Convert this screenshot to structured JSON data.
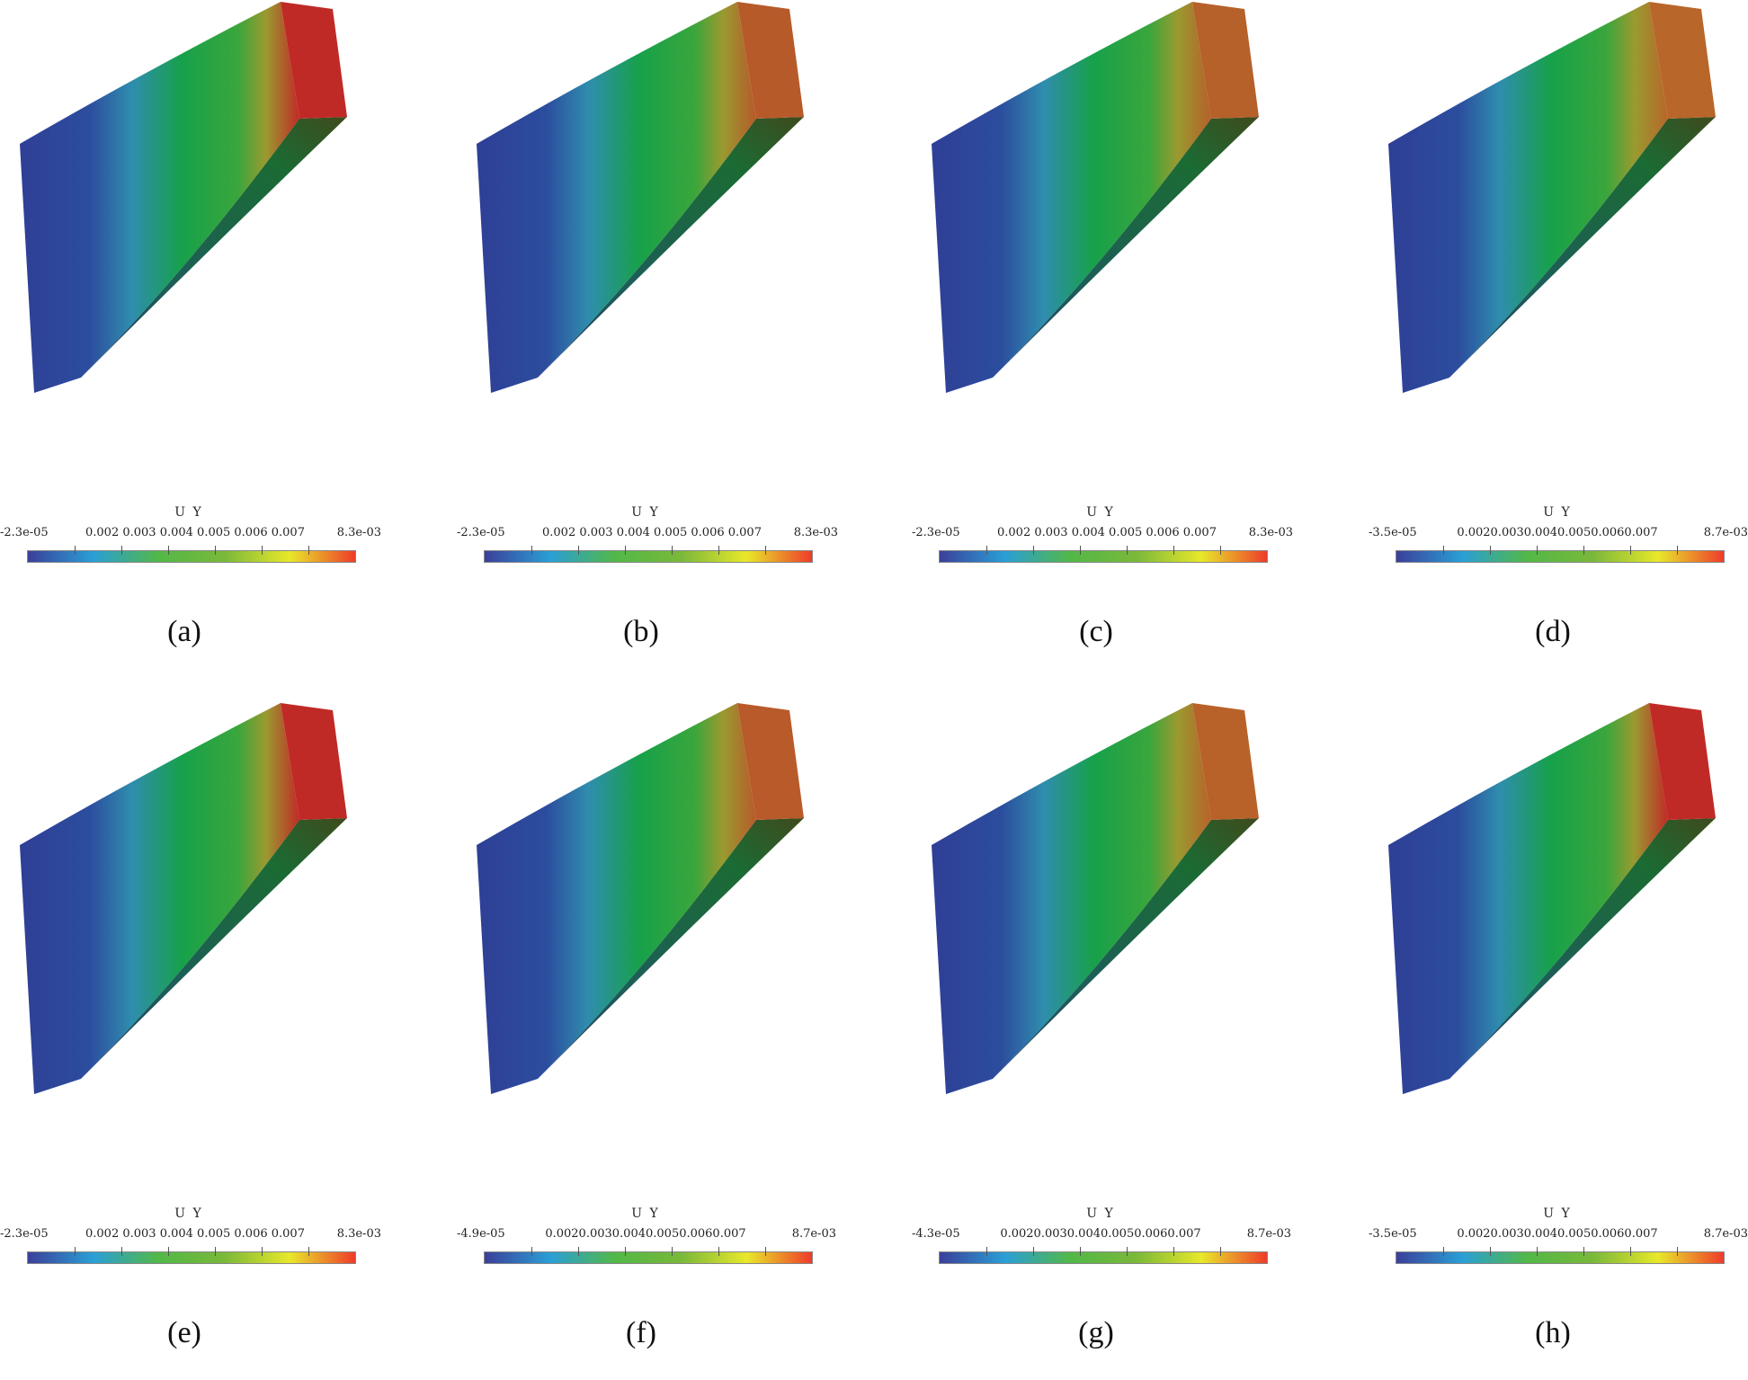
{
  "colors": {
    "colormap": [
      "#3b3f9a",
      "#2a9fd6",
      "#52b848",
      "#7ab83a",
      "#e8e82a",
      "#ef3b2a"
    ]
  },
  "panels": [
    {
      "caption": "(a)",
      "legend": {
        "title": "U Y",
        "min": "-2.3e-05",
        "ticks": "0.002 0.003 0.004 0.005 0.006 0.007",
        "max": "8.3e-03"
      },
      "right_face_color": "#c02a26"
    },
    {
      "caption": "(b)",
      "legend": {
        "title": "U Y",
        "min": "-2.3e-05",
        "ticks": "0.002 0.003 0.004 0.005 0.006 0.007",
        "max": "8.3e-03"
      },
      "right_face_color": "#b65a2a"
    },
    {
      "caption": "(c)",
      "legend": {
        "title": "U Y",
        "min": "-2.3e-05",
        "ticks": "0.002 0.003 0.004 0.005 0.006 0.007",
        "max": "8.3e-03"
      },
      "right_face_color": "#b6602a"
    },
    {
      "caption": "(d)",
      "legend": {
        "title": "U Y",
        "min": "-3.5e-05",
        "ticks": "0.0020.0030.0040.0050.0060.007",
        "max": "8.7e-03"
      },
      "right_face_color": "#b8662a"
    },
    {
      "caption": "(e)",
      "legend": {
        "title": "U Y",
        "min": "-2.3e-05",
        "ticks": "0.002 0.003 0.004 0.005 0.006 0.007",
        "max": "8.3e-03"
      },
      "right_face_color": "#c02a26"
    },
    {
      "caption": "(f)",
      "legend": {
        "title": "U Y",
        "min": "-4.9e-05",
        "ticks": "0.0020.0030.0040.0050.0060.007",
        "max": "8.7e-03"
      },
      "right_face_color": "#b85a2a"
    },
    {
      "caption": "(g)",
      "legend": {
        "title": "U Y",
        "min": "-4.3e-05",
        "ticks": "0.0020.0030.0040.0050.0060.007",
        "max": "8.7e-03"
      },
      "right_face_color": "#b8622a"
    },
    {
      "caption": "(h)",
      "legend": {
        "title": "U Y",
        "min": "-3.5e-05",
        "ticks": "0.0020.0030.0040.0050.0060.007",
        "max": "8.7e-03"
      },
      "right_face_color": "#c02a26"
    }
  ]
}
